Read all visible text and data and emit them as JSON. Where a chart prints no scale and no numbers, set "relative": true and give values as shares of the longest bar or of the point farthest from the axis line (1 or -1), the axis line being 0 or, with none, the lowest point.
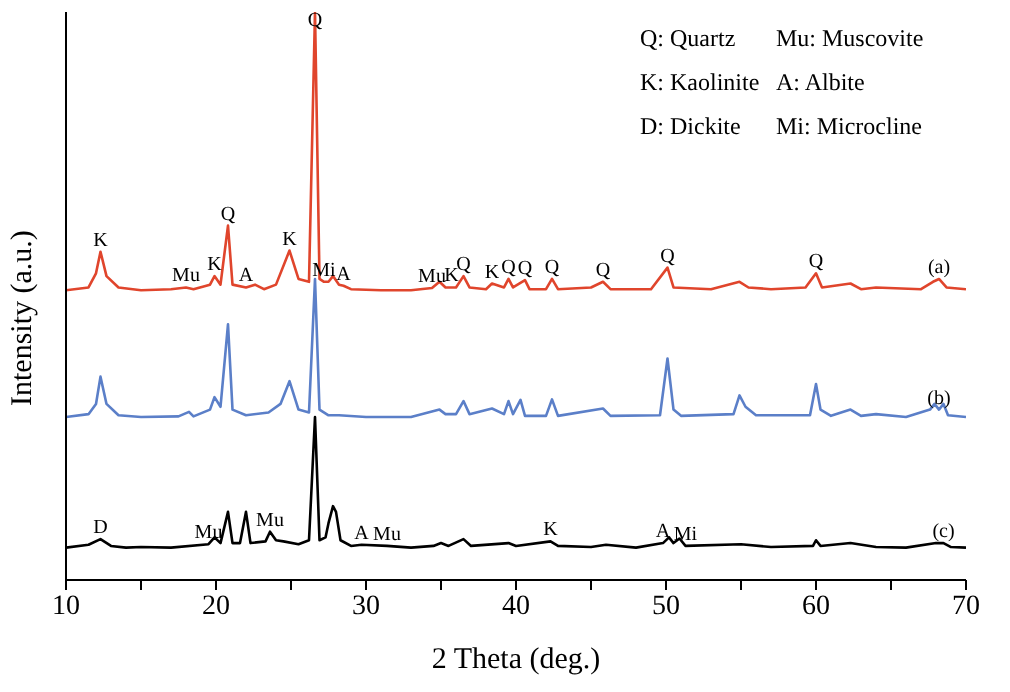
{
  "chart_data": {
    "type": "line",
    "xlabel": "2 Theta (deg.)",
    "ylabel": "Intensity (a.u.)",
    "relative": true,
    "marker": "none",
    "line_style": "solid",
    "xlim": [
      10,
      70
    ],
    "xticks": [
      10,
      {
        "value": 15,
        "label": null
      },
      20,
      {
        "value": 25,
        "label": null
      },
      30,
      {
        "value": 35,
        "label": null
      },
      40,
      {
        "value": 45,
        "label": null
      },
      50,
      {
        "value": 55,
        "label": null
      },
      60,
      {
        "value": 65,
        "label": null
      },
      70
    ],
    "series": [
      {
        "color": "#e0452c",
        "x": [
          10,
          11.5,
          12,
          12.3,
          12.7,
          13.5,
          15,
          17,
          18,
          18.5,
          19.6,
          19.9,
          20.3,
          20.8,
          21.1,
          22,
          22.6,
          23.2,
          24,
          24.9,
          25.5,
          26.2,
          26.6,
          26.9,
          27.2,
          27.5,
          27.8,
          28.2,
          28.5,
          29,
          31,
          33,
          34.4,
          34.9,
          35.3,
          35.7,
          36,
          36.5,
          36.9,
          38,
          38.4,
          39.2,
          39.5,
          39.8,
          40.6,
          40.9,
          42,
          42.4,
          42.8,
          45,
          45.8,
          46.3,
          49,
          50.1,
          50.5,
          53,
          54.9,
          55.5,
          57,
          59.3,
          60,
          60.4,
          62.3,
          63,
          64,
          67,
          67.8,
          68.2,
          68.7,
          70
        ],
        "values": [
          0.51,
          0.515,
          0.54,
          0.578,
          0.535,
          0.515,
          0.51,
          0.512,
          0.515,
          0.512,
          0.52,
          0.535,
          0.52,
          0.624,
          0.52,
          0.515,
          0.52,
          0.512,
          0.52,
          0.58,
          0.53,
          0.525,
          1.0,
          0.53,
          0.525,
          0.525,
          0.535,
          0.52,
          0.518,
          0.512,
          0.51,
          0.51,
          0.514,
          0.525,
          0.515,
          0.515,
          0.515,
          0.535,
          0.515,
          0.512,
          0.522,
          0.515,
          0.53,
          0.515,
          0.528,
          0.512,
          0.512,
          0.53,
          0.512,
          0.515,
          0.525,
          0.512,
          0.512,
          0.55,
          0.515,
          0.512,
          0.525,
          0.515,
          0.512,
          0.515,
          0.54,
          0.515,
          0.522,
          0.512,
          0.515,
          0.512,
          0.525,
          0.53,
          0.515,
          0.512
        ]
      },
      {
        "color": "#5b7fc8",
        "x": [
          10,
          11.5,
          12,
          12.3,
          12.7,
          13.5,
          15,
          17.5,
          18.2,
          18.5,
          19.6,
          19.9,
          20.3,
          20.8,
          21.1,
          22,
          23.5,
          24.3,
          24.9,
          25.5,
          26.2,
          26.6,
          26.9,
          27.5,
          28.2,
          30,
          33,
          34.9,
          35.3,
          36,
          36.5,
          36.9,
          38.4,
          39.2,
          39.5,
          39.8,
          40.3,
          40.6,
          42,
          42.4,
          42.8,
          45.8,
          46.3,
          49.6,
          50.1,
          50.5,
          51,
          54.5,
          54.9,
          55.3,
          56,
          59.6,
          60,
          60.3,
          61,
          62.3,
          63,
          64,
          66,
          67.6,
          67.9,
          68.2,
          68.5,
          68.8,
          70
        ],
        "values": [
          0.287,
          0.292,
          0.31,
          0.358,
          0.31,
          0.29,
          0.287,
          0.288,
          0.296,
          0.288,
          0.3,
          0.322,
          0.305,
          0.45,
          0.3,
          0.29,
          0.295,
          0.31,
          0.35,
          0.3,
          0.295,
          0.53,
          0.3,
          0.29,
          0.29,
          0.287,
          0.287,
          0.3,
          0.292,
          0.292,
          0.315,
          0.292,
          0.302,
          0.292,
          0.315,
          0.292,
          0.317,
          0.289,
          0.289,
          0.318,
          0.289,
          0.302,
          0.289,
          0.29,
          0.39,
          0.3,
          0.289,
          0.292,
          0.325,
          0.305,
          0.29,
          0.29,
          0.345,
          0.3,
          0.289,
          0.3,
          0.289,
          0.292,
          0.287,
          0.3,
          0.31,
          0.3,
          0.31,
          0.29,
          0.287
        ]
      },
      {
        "color": "#000000",
        "x": [
          10,
          11.5,
          12.3,
          13,
          14,
          15,
          17,
          19.5,
          19.9,
          20.3,
          20.8,
          21.1,
          21.6,
          22,
          22.3,
          23.3,
          23.6,
          24,
          24.5,
          25.5,
          26.2,
          26.6,
          26.9,
          27.3,
          27.5,
          27.8,
          28,
          28.3,
          29,
          29.7,
          31.4,
          33,
          34.5,
          35,
          35.5,
          36.5,
          37,
          39.5,
          40,
          42.3,
          42.8,
          45,
          46,
          48,
          49.8,
          50.2,
          50.5,
          50.9,
          51.3,
          55,
          57,
          59.8,
          60,
          60.3,
          62.3,
          64,
          66,
          68,
          68.5,
          69,
          70
        ],
        "values": [
          0.057,
          0.062,
          0.072,
          0.06,
          0.057,
          0.058,
          0.057,
          0.063,
          0.075,
          0.065,
          0.12,
          0.065,
          0.065,
          0.12,
          0.065,
          0.068,
          0.085,
          0.07,
          0.068,
          0.063,
          0.07,
          0.287,
          0.07,
          0.075,
          0.1,
          0.13,
          0.12,
          0.07,
          0.06,
          0.062,
          0.06,
          0.057,
          0.06,
          0.065,
          0.06,
          0.072,
          0.06,
          0.065,
          0.06,
          0.068,
          0.06,
          0.058,
          0.062,
          0.057,
          0.065,
          0.075,
          0.065,
          0.073,
          0.06,
          0.063,
          0.058,
          0.06,
          0.07,
          0.06,
          0.065,
          0.058,
          0.057,
          0.065,
          0.065,
          0.058,
          0.057
        ]
      }
    ],
    "annotations": [
      "Q: Quartz",
      "Mu: Muscovite",
      "K: Kaolinite",
      "A: Albite",
      "D: Dickite",
      "Mi: Microcline",
      {
        "text": "K",
        "x": 12.3,
        "y": 0.578
      },
      {
        "text": "Mu",
        "x": 18,
        "y": 0.515
      },
      {
        "text": "K",
        "x": 19.9,
        "y": 0.535
      },
      {
        "text": "Q",
        "x": 20.8,
        "y": 0.624
      },
      {
        "text": "A",
        "x": 22,
        "y": 0.515
      },
      {
        "text": "K",
        "x": 24.9,
        "y": 0.58
      },
      {
        "text": "Q",
        "x": 26.6,
        "y": 1.0
      },
      {
        "text": "Mi",
        "x": 27.2,
        "y": 0.525
      },
      {
        "text": "A",
        "x": 28.5,
        "y": 0.518
      },
      {
        "text": "Mu",
        "x": 34.4,
        "y": 0.514
      },
      {
        "text": "K",
        "x": 35.7,
        "y": 0.515
      },
      {
        "text": "Q",
        "x": 36.5,
        "y": 0.535
      },
      {
        "text": "K",
        "x": 38.4,
        "y": 0.522
      },
      {
        "text": "Q",
        "x": 39.5,
        "y": 0.53
      },
      {
        "text": "Q",
        "x": 40.6,
        "y": 0.528
      },
      {
        "text": "Q",
        "x": 42.4,
        "y": 0.53
      },
      {
        "text": "Q",
        "x": 45.8,
        "y": 0.525
      },
      {
        "text": "Q",
        "x": 50.1,
        "y": 0.55
      },
      {
        "text": "Q",
        "x": 60.0,
        "y": 0.54
      },
      {
        "text": "(a)",
        "x": 68.2,
        "y": 0.53
      },
      {
        "text": "(b)",
        "x": 68.2,
        "y": 0.3
      },
      {
        "text": "D",
        "x": 12.3,
        "y": 0.072
      },
      {
        "text": "Mu",
        "x": 19.5,
        "y": 0.063
      },
      {
        "text": "Mu",
        "x": 23.6,
        "y": 0.085
      },
      {
        "text": "A",
        "x": 29.7,
        "y": 0.062
      },
      {
        "text": "Mu",
        "x": 31.4,
        "y": 0.06
      },
      {
        "text": "K",
        "x": 42.3,
        "y": 0.068
      },
      {
        "text": "A",
        "x": 49.8,
        "y": 0.065
      },
      {
        "text": "Mi",
        "x": 51.3,
        "y": 0.06
      },
      {
        "text": "(c)",
        "x": 68.5,
        "y": 0.065
      }
    ]
  }
}
